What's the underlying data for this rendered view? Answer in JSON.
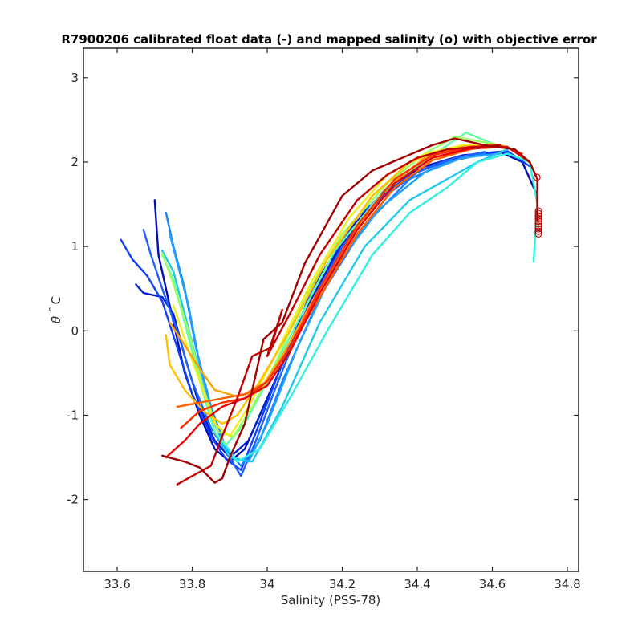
{
  "chart_data": {
    "type": "line",
    "title": "R7900206 calibrated float data (-) and mapped salinity (o) with objective error",
    "xlabel": "Salinity (PSS-78)",
    "ylabel_theta": "θ",
    "ylabel_deg": "°",
    "ylabel_unit": "C",
    "xlim": [
      33.51,
      34.83
    ],
    "ylim": [
      -2.85,
      3.35
    ],
    "x_ticks": [
      33.6,
      33.8,
      34,
      34.2,
      34.4,
      34.6,
      34.8
    ],
    "x_tick_labels": [
      "33.6",
      "33.8",
      "34",
      "34.2",
      "34.4",
      "34.6",
      "34.8"
    ],
    "y_ticks": [
      -2,
      -1,
      0,
      1,
      2,
      3
    ],
    "y_tick_labels": [
      "-2",
      "-1",
      "0",
      "1",
      "2",
      "3"
    ],
    "grid": false,
    "series": [
      {
        "color": "#0010b0",
        "points": [
          [
            33.7,
            1.55
          ],
          [
            33.71,
            0.9
          ],
          [
            33.73,
            0.5
          ],
          [
            33.75,
            0.1
          ],
          [
            33.78,
            -0.5
          ],
          [
            33.82,
            -1.0
          ],
          [
            33.86,
            -1.4
          ],
          [
            33.9,
            -1.55
          ],
          [
            33.94,
            -1.4
          ],
          [
            33.98,
            -1.0
          ],
          [
            34.04,
            -0.4
          ],
          [
            34.12,
            0.4
          ],
          [
            34.22,
            1.2
          ],
          [
            34.32,
            1.7
          ],
          [
            34.42,
            1.95
          ],
          [
            34.52,
            2.08
          ],
          [
            34.62,
            2.12
          ],
          [
            34.68,
            2.0
          ],
          [
            34.72,
            1.6
          ]
        ]
      },
      {
        "color": "#0020d0",
        "points": [
          [
            33.65,
            0.55
          ],
          [
            33.67,
            0.45
          ],
          [
            33.72,
            0.4
          ],
          [
            33.75,
            0.2
          ],
          [
            33.78,
            -0.3
          ],
          [
            33.82,
            -0.9
          ],
          [
            33.86,
            -1.3
          ],
          [
            33.9,
            -1.5
          ],
          [
            33.95,
            -1.3
          ],
          [
            34.0,
            -0.8
          ],
          [
            34.08,
            0.0
          ],
          [
            34.18,
            0.9
          ],
          [
            34.28,
            1.5
          ],
          [
            34.38,
            1.85
          ],
          [
            34.48,
            2.02
          ],
          [
            34.56,
            2.1
          ],
          [
            34.64,
            2.12
          ]
        ]
      },
      {
        "color": "#1040ff",
        "points": [
          [
            33.61,
            1.08
          ],
          [
            33.64,
            0.85
          ],
          [
            33.68,
            0.65
          ],
          [
            33.72,
            0.35
          ],
          [
            33.76,
            -0.2
          ],
          [
            33.8,
            -0.75
          ],
          [
            33.85,
            -1.25
          ],
          [
            33.89,
            -1.52
          ],
          [
            33.93,
            -1.65
          ],
          [
            33.97,
            -1.2
          ],
          [
            34.03,
            -0.5
          ],
          [
            34.12,
            0.5
          ],
          [
            34.24,
            1.35
          ],
          [
            34.36,
            1.8
          ],
          [
            34.46,
            2.0
          ],
          [
            34.56,
            2.1
          ],
          [
            34.64,
            2.13
          ],
          [
            34.7,
            1.95
          ]
        ]
      },
      {
        "color": "#2060ff",
        "points": [
          [
            33.67,
            1.2
          ],
          [
            33.69,
            0.9
          ],
          [
            33.72,
            0.5
          ],
          [
            33.76,
            0.0
          ],
          [
            33.8,
            -0.6
          ],
          [
            33.85,
            -1.15
          ],
          [
            33.9,
            -1.5
          ],
          [
            33.93,
            -1.72
          ],
          [
            33.97,
            -1.3
          ],
          [
            34.02,
            -0.7
          ],
          [
            34.1,
            0.2
          ],
          [
            34.2,
            1.0
          ],
          [
            34.3,
            1.55
          ],
          [
            34.4,
            1.88
          ],
          [
            34.5,
            2.05
          ],
          [
            34.58,
            2.12
          ]
        ]
      },
      {
        "color": "#1880ff",
        "points": [
          [
            33.73,
            1.4
          ],
          [
            33.75,
            1.0
          ],
          [
            33.78,
            0.5
          ],
          [
            33.81,
            -0.2
          ],
          [
            33.85,
            -0.9
          ],
          [
            33.89,
            -1.4
          ],
          [
            33.93,
            -1.6
          ],
          [
            33.98,
            -1.3
          ],
          [
            34.04,
            -0.6
          ],
          [
            34.14,
            0.4
          ],
          [
            34.26,
            1.25
          ],
          [
            34.38,
            1.8
          ],
          [
            34.48,
            2.0
          ],
          [
            34.58,
            2.1
          ]
        ]
      },
      {
        "color": "#20a0ff",
        "points": [
          [
            33.74,
            1.15
          ],
          [
            33.76,
            0.8
          ],
          [
            33.79,
            0.3
          ],
          [
            33.82,
            -0.4
          ],
          [
            33.86,
            -1.1
          ],
          [
            33.9,
            -1.5
          ],
          [
            33.95,
            -1.55
          ],
          [
            34.0,
            -1.1
          ],
          [
            34.08,
            -0.2
          ],
          [
            34.18,
            0.75
          ],
          [
            34.3,
            1.45
          ],
          [
            34.42,
            1.88
          ],
          [
            34.52,
            2.05
          ],
          [
            34.62,
            2.1
          ]
        ]
      },
      {
        "color": "#20c8f0",
        "points": [
          [
            33.72,
            0.95
          ],
          [
            33.75,
            0.7
          ],
          [
            33.78,
            0.2
          ],
          [
            33.82,
            -0.5
          ],
          [
            33.86,
            -1.2
          ],
          [
            33.9,
            -1.5
          ],
          [
            33.96,
            -1.55
          ],
          [
            34.04,
            -0.9
          ],
          [
            34.14,
            0.1
          ],
          [
            34.26,
            1.0
          ],
          [
            34.38,
            1.55
          ],
          [
            34.46,
            1.75
          ],
          [
            34.56,
            2.0
          ],
          [
            34.64,
            2.15
          ]
        ]
      },
      {
        "color": "#30f0e0",
        "points": [
          [
            33.88,
            -1.3
          ],
          [
            33.92,
            -1.55
          ],
          [
            33.98,
            -1.4
          ],
          [
            34.06,
            -0.8
          ],
          [
            34.16,
            0.0
          ],
          [
            34.28,
            0.9
          ],
          [
            34.38,
            1.4
          ],
          [
            34.48,
            1.7
          ],
          [
            34.56,
            2.0
          ],
          [
            34.64,
            2.1
          ],
          [
            34.7,
            2.0
          ],
          [
            34.72,
            1.5
          ],
          [
            34.71,
            0.82
          ]
        ]
      },
      {
        "color": "#60ffa0",
        "points": [
          [
            33.72,
            0.9
          ],
          [
            33.75,
            0.6
          ],
          [
            33.78,
            0.1
          ],
          [
            33.82,
            -0.6
          ],
          [
            33.86,
            -1.2
          ],
          [
            33.89,
            -1.35
          ],
          [
            33.94,
            -1.1
          ],
          [
            34.0,
            -0.6
          ],
          [
            34.08,
            0.1
          ],
          [
            34.18,
            0.95
          ],
          [
            34.3,
            1.6
          ],
          [
            34.4,
            1.95
          ],
          [
            34.48,
            2.2
          ],
          [
            34.53,
            2.35
          ],
          [
            34.6,
            2.22
          ],
          [
            34.66,
            2.15
          ]
        ]
      },
      {
        "color": "#a0ff60",
        "points": [
          [
            33.72,
            0.92
          ],
          [
            33.75,
            0.55
          ],
          [
            33.79,
            0.0
          ],
          [
            33.83,
            -0.7
          ],
          [
            33.87,
            -1.2
          ],
          [
            33.91,
            -1.25
          ],
          [
            33.96,
            -0.9
          ],
          [
            34.02,
            -0.4
          ],
          [
            34.1,
            0.4
          ],
          [
            34.2,
            1.15
          ],
          [
            34.32,
            1.75
          ],
          [
            34.42,
            2.1
          ],
          [
            34.5,
            2.3
          ],
          [
            34.56,
            2.25
          ],
          [
            34.64,
            2.18
          ]
        ]
      },
      {
        "color": "#f0f020",
        "points": [
          [
            33.75,
            0.3
          ],
          [
            33.78,
            -0.1
          ],
          [
            33.82,
            -0.6
          ],
          [
            33.86,
            -1.1
          ],
          [
            33.9,
            -1.25
          ],
          [
            33.95,
            -0.9
          ],
          [
            34.02,
            -0.3
          ],
          [
            34.12,
            0.6
          ],
          [
            34.22,
            1.35
          ],
          [
            34.32,
            1.85
          ],
          [
            34.42,
            2.1
          ],
          [
            34.52,
            2.2
          ],
          [
            34.6,
            2.2
          ],
          [
            34.66,
            2.15
          ]
        ]
      },
      {
        "color": "#ffc000",
        "points": [
          [
            33.73,
            -0.05
          ],
          [
            33.74,
            -0.4
          ],
          [
            33.78,
            -0.7
          ],
          [
            33.83,
            -0.95
          ],
          [
            33.88,
            -1.1
          ],
          [
            33.92,
            -1.0
          ],
          [
            33.98,
            -0.6
          ],
          [
            34.06,
            0.0
          ],
          [
            34.16,
            0.85
          ],
          [
            34.28,
            1.6
          ],
          [
            34.38,
            2.0
          ],
          [
            34.46,
            2.12
          ],
          [
            34.54,
            2.18
          ],
          [
            34.62,
            2.2
          ]
        ]
      },
      {
        "color": "#ffa000",
        "points": [
          [
            33.74,
            0.1
          ],
          [
            33.77,
            -0.1
          ],
          [
            33.82,
            -0.45
          ],
          [
            33.86,
            -0.7
          ],
          [
            33.92,
            -0.78
          ],
          [
            33.98,
            -0.7
          ],
          [
            34.04,
            -0.3
          ],
          [
            34.12,
            0.35
          ],
          [
            34.22,
            1.1
          ],
          [
            34.32,
            1.7
          ],
          [
            34.42,
            2.05
          ],
          [
            34.52,
            2.18
          ],
          [
            34.6,
            2.2
          ]
        ]
      },
      {
        "color": "#ff6000",
        "points": [
          [
            33.76,
            -0.9
          ],
          [
            33.82,
            -0.85
          ],
          [
            33.88,
            -0.8
          ],
          [
            33.94,
            -0.75
          ],
          [
            34.0,
            -0.6
          ],
          [
            34.06,
            -0.2
          ],
          [
            34.14,
            0.4
          ],
          [
            34.24,
            1.15
          ],
          [
            34.34,
            1.7
          ],
          [
            34.44,
            2.02
          ],
          [
            34.54,
            2.15
          ],
          [
            34.62,
            2.2
          ],
          [
            34.68,
            2.1
          ]
        ]
      },
      {
        "color": "#ff3000",
        "points": [
          [
            33.77,
            -1.15
          ],
          [
            33.82,
            -0.95
          ],
          [
            33.88,
            -0.85
          ],
          [
            33.94,
            -0.8
          ],
          [
            34.0,
            -0.6
          ],
          [
            34.06,
            -0.2
          ],
          [
            34.14,
            0.5
          ],
          [
            34.24,
            1.25
          ],
          [
            34.34,
            1.8
          ],
          [
            34.44,
            2.08
          ],
          [
            34.54,
            2.18
          ],
          [
            34.64,
            2.18
          ]
        ]
      },
      {
        "color": "#e80000",
        "points": [
          [
            33.73,
            -1.5
          ],
          [
            33.78,
            -1.3
          ],
          [
            33.82,
            -1.1
          ],
          [
            33.88,
            -0.9
          ],
          [
            33.94,
            -0.8
          ],
          [
            34.0,
            -0.65
          ],
          [
            34.06,
            -0.25
          ],
          [
            34.14,
            0.45
          ],
          [
            34.24,
            1.2
          ],
          [
            34.34,
            1.75
          ],
          [
            34.44,
            2.05
          ],
          [
            34.54,
            2.16
          ],
          [
            34.64,
            2.18
          ],
          [
            34.7,
            2.0
          ]
        ]
      },
      {
        "color": "#c00000",
        "points": [
          [
            33.76,
            -1.82
          ],
          [
            33.8,
            -1.72
          ],
          [
            33.85,
            -1.6
          ],
          [
            33.88,
            -1.25
          ],
          [
            33.92,
            -0.8
          ],
          [
            33.96,
            -0.3
          ],
          [
            34.01,
            -0.2
          ],
          [
            34.04,
            0.25
          ],
          [
            34.0,
            -0.3
          ],
          [
            34.06,
            0.2
          ],
          [
            34.14,
            0.9
          ],
          [
            34.24,
            1.55
          ],
          [
            34.32,
            1.85
          ],
          [
            34.4,
            2.05
          ],
          [
            34.48,
            2.15
          ],
          [
            34.56,
            2.18
          ],
          [
            34.62,
            2.2
          ]
        ]
      },
      {
        "color": "#a00000",
        "points": [
          [
            33.72,
            -1.48
          ],
          [
            33.78,
            -1.55
          ],
          [
            33.82,
            -1.62
          ],
          [
            33.86,
            -1.8
          ],
          [
            33.88,
            -1.75
          ],
          [
            33.9,
            -1.5
          ],
          [
            33.94,
            -1.1
          ],
          [
            33.99,
            -0.1
          ],
          [
            34.04,
            0.1
          ],
          [
            34.1,
            0.8
          ],
          [
            34.2,
            1.6
          ],
          [
            34.28,
            1.9
          ],
          [
            34.36,
            2.05
          ],
          [
            34.44,
            2.2
          ],
          [
            34.5,
            2.28
          ],
          [
            34.58,
            2.2
          ],
          [
            34.66,
            2.15
          ],
          [
            34.7,
            2.0
          ],
          [
            34.72,
            1.8
          ],
          [
            34.72,
            1.3
          ]
        ]
      }
    ],
    "mapped": {
      "color": "#c00000",
      "points": [
        [
          34.719,
          1.82
        ],
        [
          34.723,
          1.42
        ],
        [
          34.723,
          1.39
        ],
        [
          34.723,
          1.36
        ],
        [
          34.723,
          1.33
        ],
        [
          34.723,
          1.3
        ],
        [
          34.723,
          1.27
        ],
        [
          34.723,
          1.24
        ],
        [
          34.723,
          1.21
        ],
        [
          34.723,
          1.18
        ],
        [
          34.723,
          1.15
        ]
      ]
    }
  }
}
